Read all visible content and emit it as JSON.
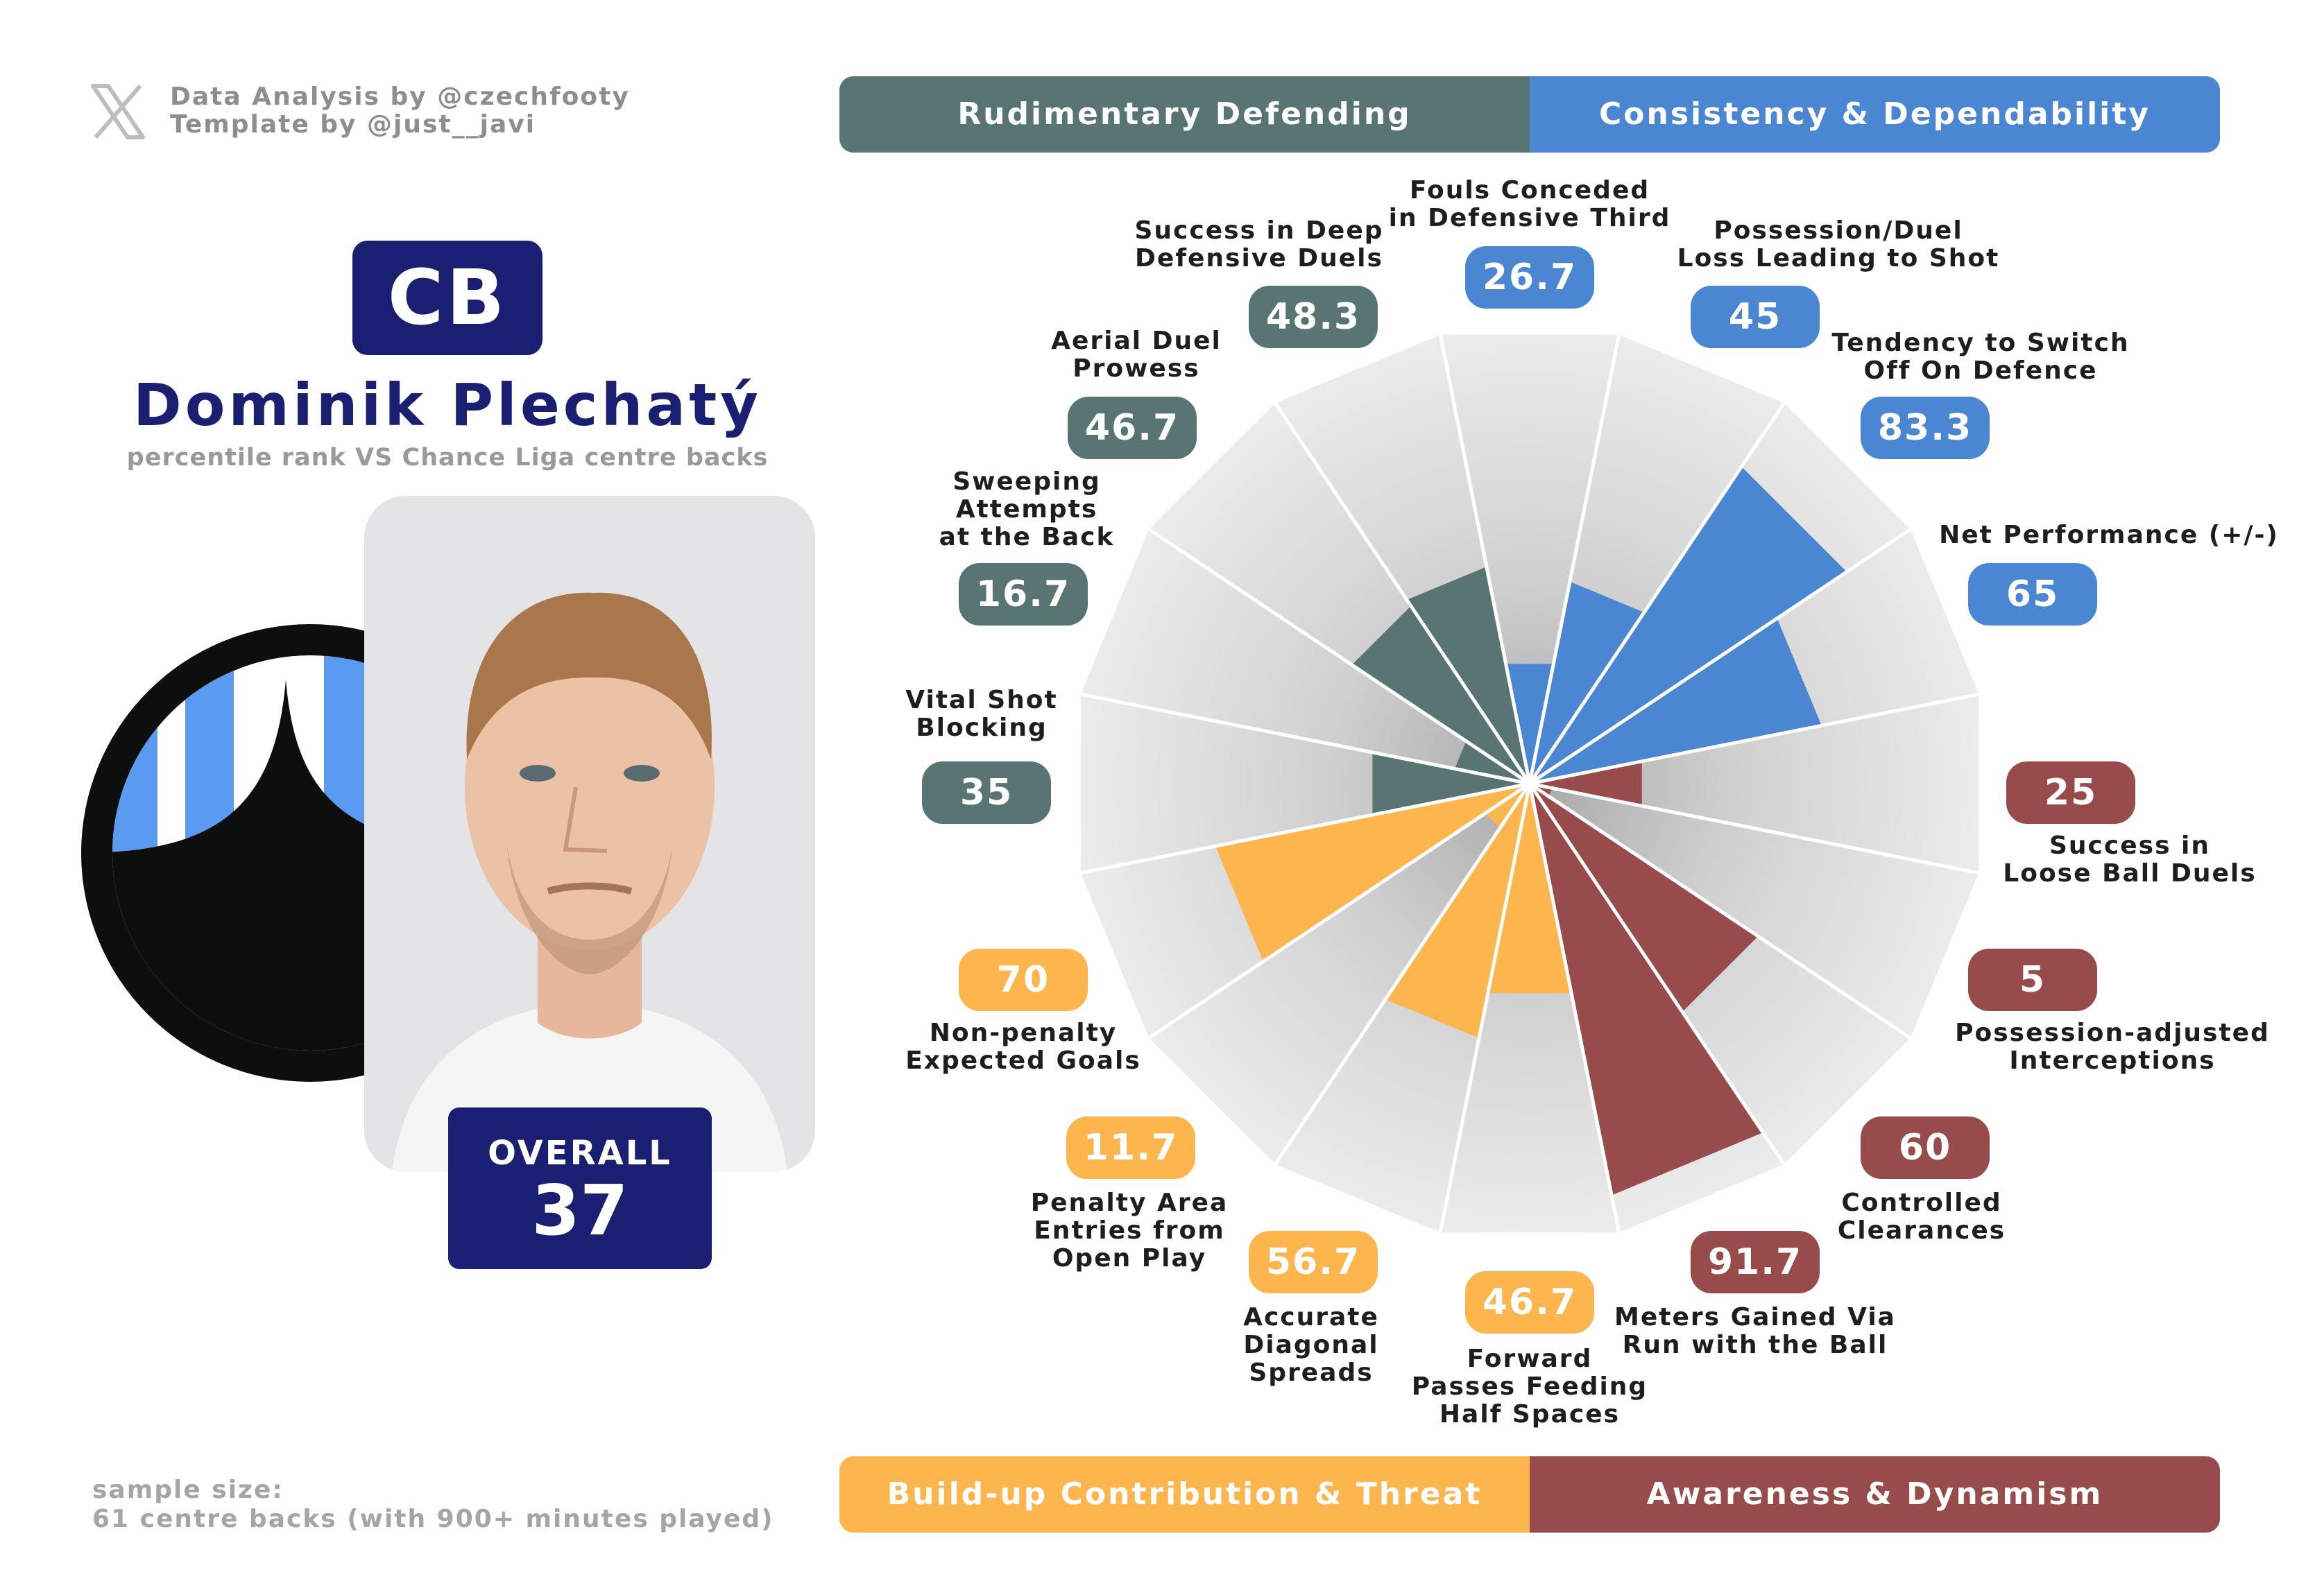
{
  "credits": {
    "line1": "Data Analysis by @czechfooty",
    "line2": "Template by @just__javi"
  },
  "player": {
    "position": "CB",
    "name": "Dominik Plechatý",
    "subtitle": "percentile rank VS Chance Liga centre backs",
    "overall_label": "OVERALL",
    "overall_value": "37"
  },
  "sample": {
    "line1": "sample size:",
    "line2": "61 centre backs (with 900+ minutes played)"
  },
  "categories": {
    "top_left": "Rudimentary Defending",
    "top_right": "Consistency & Dependability",
    "bottom_left": "Build-up Contribution & Threat",
    "bottom_right": "Awareness & Dynamism"
  },
  "colors": {
    "defending": "#587473",
    "consistency": "#4b86d3",
    "buildup": "#fdb64d",
    "awareness": "#974b4b",
    "navy": "#1a1f71",
    "wedge_bg": "#e8e8e8"
  },
  "chart_data": {
    "type": "polar-bar",
    "title": "Dominik Plechatý",
    "range": [
      0,
      100
    ],
    "metrics": [
      {
        "name": "Fouls Conceded in Defensive Third",
        "lines": [
          "Fouls Conceded",
          "in Defensive Third"
        ],
        "value": 26.7,
        "display": "26.7",
        "category": "consistency"
      },
      {
        "name": "Possession/Duel Loss Leading to Shot",
        "lines": [
          "Possession/Duel",
          "Loss Leading to Shot"
        ],
        "value": 45,
        "display": "45",
        "category": "consistency"
      },
      {
        "name": "Tendency to Switch Off On Defence",
        "lines": [
          "Tendency to Switch",
          "Off On Defence"
        ],
        "value": 83.3,
        "display": "83.3",
        "category": "consistency"
      },
      {
        "name": "Net Performance (+/-)",
        "lines": [
          "Net Performance (+/-)"
        ],
        "value": 65,
        "display": "65",
        "category": "consistency"
      },
      {
        "name": "Success in Loose Ball Duels",
        "lines": [
          "Success in",
          "Loose Ball Duels"
        ],
        "value": 25,
        "display": "25",
        "category": "awareness"
      },
      {
        "name": "Possession-adjusted Interceptions",
        "lines": [
          "Possession-adjusted",
          "Interceptions"
        ],
        "value": 5,
        "display": "5",
        "category": "awareness"
      },
      {
        "name": "Controlled Clearances",
        "lines": [
          "Controlled",
          "Clearances"
        ],
        "value": 60,
        "display": "60",
        "category": "awareness"
      },
      {
        "name": "Meters Gained Via Run with the Ball",
        "lines": [
          "Meters Gained Via",
          "Run with the Ball"
        ],
        "value": 91.7,
        "display": "91.7",
        "category": "awareness"
      },
      {
        "name": "Forward Passes Feeding Half Spaces",
        "lines": [
          "Forward",
          "Passes Feeding",
          "Half Spaces"
        ],
        "value": 46.7,
        "display": "46.7",
        "category": "buildup"
      },
      {
        "name": "Accurate Diagonal Spreads",
        "lines": [
          "Accurate",
          "Diagonal",
          "Spreads"
        ],
        "value": 56.7,
        "display": "56.7",
        "category": "buildup"
      },
      {
        "name": "Penalty Area Entries from Open Play",
        "lines": [
          "Penalty Area",
          "Entries from",
          "Open Play"
        ],
        "value": 11.7,
        "display": "11.7",
        "category": "buildup"
      },
      {
        "name": "Non-penalty Expected Goals",
        "lines": [
          "Non-penalty",
          "Expected Goals"
        ],
        "value": 70,
        "display": "70",
        "category": "buildup"
      },
      {
        "name": "Vital Shot Blocking",
        "lines": [
          "Vital Shot",
          "Blocking"
        ],
        "value": 35,
        "display": "35",
        "category": "defending"
      },
      {
        "name": "Sweeping Attempts at the Back",
        "lines": [
          "Sweeping",
          "Attempts",
          "at the Back"
        ],
        "value": 16.7,
        "display": "16.7",
        "category": "defending"
      },
      {
        "name": "Aerial Duel Prowess",
        "lines": [
          "Aerial Duel",
          "Prowess"
        ],
        "value": 46.7,
        "display": "46.7",
        "category": "defending"
      },
      {
        "name": "Success in Deep Defensive Duels",
        "lines": [
          "Success in Deep",
          "Defensive Duels"
        ],
        "value": 48.3,
        "display": "48.3",
        "category": "defending"
      }
    ]
  }
}
